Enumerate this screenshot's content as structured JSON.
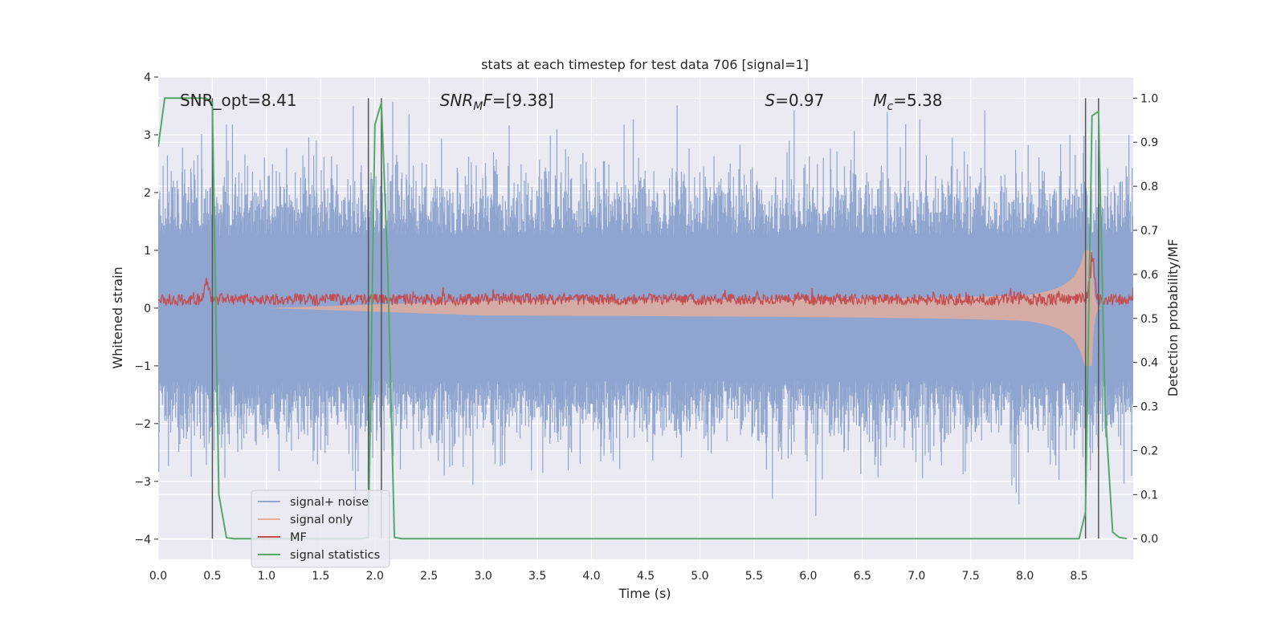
{
  "chart_data": {
    "type": "line",
    "title": "stats at each timestep for test data 706 [signal=1]",
    "xlabel": "Time (s)",
    "ylabel": "Whitened strain",
    "y2label": "Detection probability/MF",
    "xlim": [
      0.0,
      9.0
    ],
    "ylim": [
      -4.35,
      4.0
    ],
    "y2lim": [
      -0.047,
      1.048
    ],
    "xticks": [
      "0.0",
      "0.5",
      "1.0",
      "1.5",
      "2.0",
      "2.5",
      "3.0",
      "3.5",
      "4.0",
      "4.5",
      "5.0",
      "5.5",
      "6.0",
      "6.5",
      "7.0",
      "7.5",
      "8.0",
      "8.5"
    ],
    "xtick_values": [
      0,
      0.5,
      1,
      1.5,
      2,
      2.5,
      3,
      3.5,
      4,
      4.5,
      5,
      5.5,
      6,
      6.5,
      7,
      7.5,
      8,
      8.5
    ],
    "yticks": [
      "4",
      "3",
      "2",
      "1",
      "0",
      "−1",
      "−2",
      "−3",
      "−4"
    ],
    "ytick_values": [
      4,
      3,
      2,
      1,
      0,
      -1,
      -2,
      -3,
      -4
    ],
    "y2ticks": [
      "1.0",
      "0.9",
      "0.8",
      "0.7",
      "0.6",
      "0.5",
      "0.4",
      "0.3",
      "0.2",
      "0.1",
      "0.0"
    ],
    "y2tick_values": [
      1.0,
      0.9,
      0.8,
      0.7,
      0.6,
      0.5,
      0.4,
      0.3,
      0.2,
      0.1,
      0.0
    ],
    "grid": true,
    "legend_position": "lower-left",
    "annotations": [
      {
        "text": "SNR_opt=8.41",
        "x": 0.2,
        "y": 3.6,
        "math": false
      },
      {
        "text": "SNR_MF=[9.38]",
        "base": "SNR",
        "sub": "M",
        "rest": "F=[9.38]",
        "x": 2.6,
        "y": 3.6,
        "math": true
      },
      {
        "text": "S=0.97",
        "base": "S",
        "sub": "",
        "rest": "=0.97",
        "x": 5.6,
        "y": 3.6,
        "math": true
      },
      {
        "text": "Mc=5.38",
        "base": "M",
        "sub": "c",
        "rest": "=5.38",
        "x": 6.6,
        "y": 3.6,
        "math": true
      }
    ],
    "vlines": [
      0.5,
      1.94,
      2.06,
      8.56,
      8.68
    ],
    "series": [
      {
        "name": "signal+ noise",
        "color": "#8fa5cf",
        "axis": "left",
        "kind": "noise",
        "typical_abs": 2.0,
        "max_abs": 3.6
      },
      {
        "name": "signal only",
        "color": "#e5ae9a",
        "axis": "left",
        "kind": "chirp",
        "merger_time": 8.62,
        "peak_amplitude": 1.0
      },
      {
        "name": "MF",
        "color": "#c44e52",
        "axis": "left",
        "kind": "noisy-flat",
        "level": 0.15,
        "spread": 0.2,
        "peaks": [
          [
            0.45,
            0.45
          ],
          [
            8.62,
            1.0
          ]
        ]
      },
      {
        "name": "signal statistics",
        "color": "#55a868",
        "axis": "right",
        "x": [
          0.0,
          0.06,
          0.1,
          0.2,
          0.3,
          0.4,
          0.44,
          0.5,
          0.56,
          0.63,
          0.7,
          0.8,
          1.0,
          1.5,
          1.88,
          1.94,
          2.0,
          2.06,
          2.12,
          2.18,
          2.25,
          2.3,
          3.0,
          5.0,
          7.0,
          8.0,
          8.5,
          8.56,
          8.62,
          8.68,
          8.74,
          8.81,
          8.87,
          8.94
        ],
        "y": [
          0.89,
          1.0,
          1.0,
          1.0,
          1.0,
          1.0,
          1.0,
          0.99,
          0.1,
          0.002,
          0.0,
          0.0,
          0.0,
          0.0,
          0.0,
          0.003,
          0.94,
          0.99,
          0.6,
          0.003,
          0.0,
          0.0,
          0.0,
          0.0,
          0.0,
          0.0,
          0.0,
          0.06,
          0.96,
          0.97,
          0.3,
          0.015,
          0.003,
          0.0
        ]
      }
    ]
  }
}
